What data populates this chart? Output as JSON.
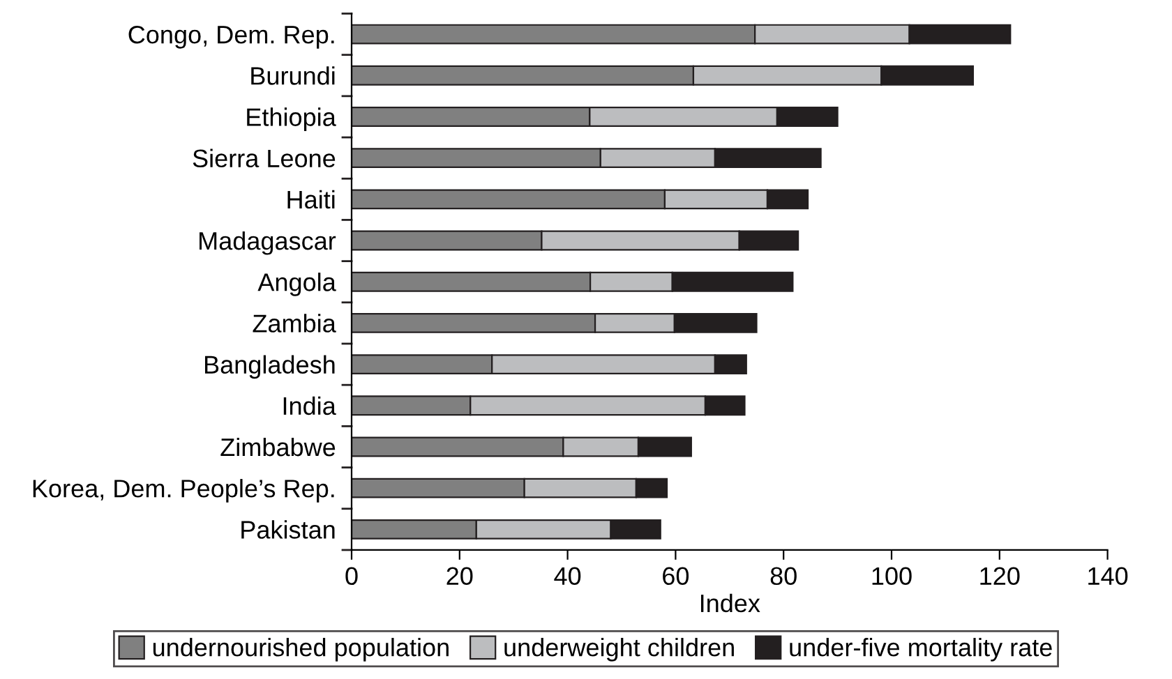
{
  "chart_data": {
    "type": "bar",
    "orientation": "horizontal",
    "stacked": true,
    "xlabel": "Index",
    "categories": [
      "Congo, Dem. Rep.",
      "Burundi",
      "Ethiopia",
      "Sierra Leone",
      "Haiti",
      "Madagascar",
      "Angola",
      "Zambia",
      "Bangladesh",
      "India",
      "Zimbabwe",
      "Korea, Dem. People’s Rep.",
      "Pakistan"
    ],
    "series": [
      {
        "name": "undernourished population",
        "color": "#808080",
        "values": [
          74.7,
          63.3,
          44.1,
          46.1,
          58.0,
          35.2,
          44.2,
          45.1,
          26.0,
          22.0,
          39.2,
          32.0,
          23.1
        ]
      },
      {
        "name": "underweight children",
        "color": "#bcbdbf",
        "values": [
          28.6,
          34.8,
          34.7,
          21.2,
          19.0,
          36.6,
          15.2,
          14.7,
          41.3,
          43.5,
          13.9,
          20.7,
          24.9
        ]
      },
      {
        "name": "under-five mortality rate",
        "color": "#231f20",
        "values": [
          18.7,
          17.0,
          11.2,
          19.6,
          7.5,
          10.9,
          22.3,
          15.2,
          5.8,
          7.3,
          9.8,
          5.7,
          9.2
        ]
      }
    ],
    "xlim": [
      0,
      140
    ],
    "xticks": [
      0,
      20,
      40,
      60,
      80,
      100,
      120,
      140
    ],
    "grid": false,
    "legend": "bottom"
  }
}
